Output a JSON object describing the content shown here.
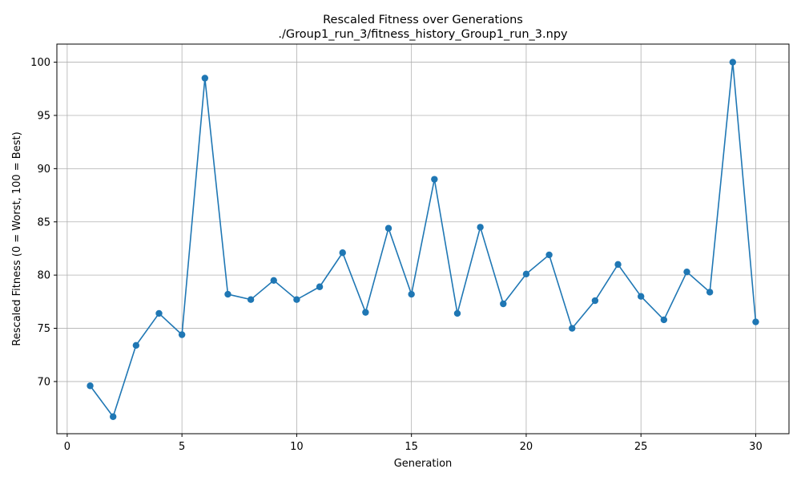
{
  "chart_data": {
    "type": "line",
    "title": "Rescaled Fitness over Generations",
    "subtitle": "./Group1_run_3/fitness_history_Group1_run_3.npy",
    "xlabel": "Generation",
    "ylabel": "Rescaled Fitness (0 = Worst, 100 = Best)",
    "xlim": [
      -0.45,
      31.45
    ],
    "ylim": [
      65.1,
      101.7
    ],
    "xticks": [
      0,
      5,
      10,
      15,
      20,
      25,
      30
    ],
    "yticks": [
      70,
      75,
      80,
      85,
      90,
      95,
      100
    ],
    "grid": true,
    "marker": "circle",
    "color": "#1f77b4",
    "x": [
      1,
      2,
      3,
      4,
      5,
      6,
      7,
      8,
      9,
      10,
      11,
      12,
      13,
      14,
      15,
      16,
      17,
      18,
      19,
      20,
      21,
      22,
      23,
      24,
      25,
      26,
      27,
      28,
      29,
      30
    ],
    "values": [
      69.6,
      66.7,
      73.4,
      76.4,
      74.4,
      98.5,
      78.2,
      77.7,
      79.5,
      77.7,
      78.9,
      82.1,
      76.5,
      84.4,
      78.2,
      89.0,
      76.4,
      84.5,
      77.3,
      80.1,
      81.9,
      75.0,
      77.6,
      81.0,
      78.0,
      75.8,
      80.3,
      78.4,
      100.0,
      75.6
    ]
  }
}
